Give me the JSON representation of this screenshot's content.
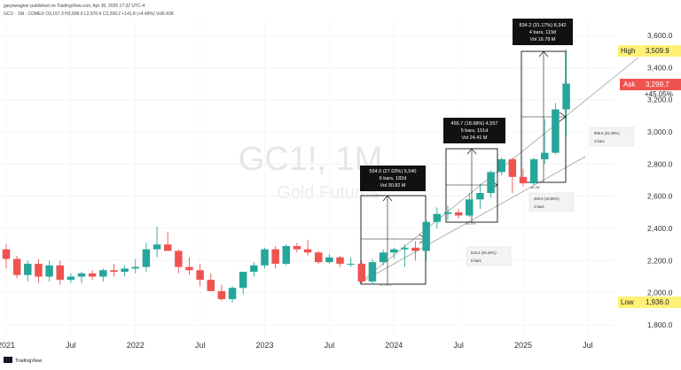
{
  "header": {
    "publisher": "garyowagner published on TradingView.com, Apr 30, 2025 17:32 UTC-4",
    "ohlc": "GC1! · 1M · COMEX  O3,157.3  H3,509.9  L2,970.4  C3,299.2  +141.8 (+4.49%)  Vol5.43K"
  },
  "watermark": {
    "symbol": "GC1!, 1M",
    "name": "Gold Futures"
  },
  "footer": {
    "logo_text": "TradingView"
  },
  "labels": {
    "high_label": "High",
    "high_value": "3,509.9",
    "ask_label": "Ask",
    "ask_value": "3,299.7",
    "ask_pct": "+45.05%",
    "low_label": "Low",
    "low_value": "1,936.0"
  },
  "measures": [
    {
      "line1": "554.0 (27.03%) 5,540",
      "line2": "6 bars, 182d",
      "line3": "Vol 30.82 M"
    },
    {
      "line1": "455.7 (18.68%) 4,557",
      "line2": "5 bars, 151d",
      "line3": "Vol 24.41 M"
    },
    {
      "line1": "834.2 (31.17%) 8,342",
      "line2": "4 bars, 119d",
      "line3": "Vol 16.78 M"
    }
  ],
  "notes": [
    {
      "line1": "543.4 (26.44%)",
      "line2": "6 bars"
    },
    {
      "line1": "450.9 (18.50%)",
      "line2": "4 bars"
    },
    {
      "line1": "856.6 (32.29%)",
      "line2": "4 bars"
    }
  ],
  "small_labels": {
    "angle": "45.36°",
    "b1": "32.33%",
    "b2": "26.4%"
  },
  "colors": {
    "up": "#26a69a",
    "down": "#ef5350",
    "highlight": "#fff176",
    "ask": "#ef5350"
  },
  "chart_data": {
    "type": "candlestick",
    "title": "GC1!, 1M",
    "subtitle": "Gold Futures",
    "ylim": [
      1700,
      3700
    ],
    "y_ticks": [
      1800,
      2000,
      2200,
      2400,
      2600,
      2800,
      3000,
      3200,
      3400,
      3600
    ],
    "y_tick_labels": [
      "1,800.0",
      "2,000.0",
      "2,200.0",
      "2,400.0",
      "2,600.0",
      "2,800.0",
      "3,000.0",
      "3,200.0",
      "3,400.0",
      "3,600.0"
    ],
    "x_labels": [
      {
        "label": "2021",
        "i": 0
      },
      {
        "label": "Jul",
        "i": 6
      },
      {
        "label": "2022",
        "i": 12
      },
      {
        "label": "Jul",
        "i": 18
      },
      {
        "label": "2023",
        "i": 24
      },
      {
        "label": "Jul",
        "i": 30
      },
      {
        "label": "2024",
        "i": 36
      },
      {
        "label": "Jul",
        "i": 42
      },
      {
        "label": "2025",
        "i": 48
      },
      {
        "label": "Jul",
        "i": 54
      }
    ],
    "candles": [
      {
        "o": 2270,
        "h": 2300,
        "l": 2150,
        "c": 2210
      },
      {
        "o": 2210,
        "h": 2230,
        "l": 2090,
        "c": 2110
      },
      {
        "o": 2110,
        "h": 2200,
        "l": 2070,
        "c": 2180
      },
      {
        "o": 2180,
        "h": 2210,
        "l": 2060,
        "c": 2100
      },
      {
        "o": 2100,
        "h": 2200,
        "l": 2070,
        "c": 2170
      },
      {
        "o": 2170,
        "h": 2200,
        "l": 2050,
        "c": 2080
      },
      {
        "o": 2080,
        "h": 2120,
        "l": 2060,
        "c": 2100
      },
      {
        "o": 2100,
        "h": 2130,
        "l": 2060,
        "c": 2120
      },
      {
        "o": 2120,
        "h": 2140,
        "l": 2080,
        "c": 2100
      },
      {
        "o": 2100,
        "h": 2150,
        "l": 2070,
        "c": 2140
      },
      {
        "o": 2140,
        "h": 2180,
        "l": 2100,
        "c": 2130
      },
      {
        "o": 2130,
        "h": 2170,
        "l": 2100,
        "c": 2150
      },
      {
        "o": 2150,
        "h": 2210,
        "l": 2120,
        "c": 2160
      },
      {
        "o": 2160,
        "h": 2310,
        "l": 2130,
        "c": 2270
      },
      {
        "o": 2270,
        "h": 2410,
        "l": 2220,
        "c": 2300
      },
      {
        "o": 2300,
        "h": 2380,
        "l": 2260,
        "c": 2260
      },
      {
        "o": 2260,
        "h": 2270,
        "l": 2120,
        "c": 2160
      },
      {
        "o": 2160,
        "h": 2220,
        "l": 2110,
        "c": 2140
      },
      {
        "o": 2140,
        "h": 2180,
        "l": 2040,
        "c": 2080
      },
      {
        "o": 2080,
        "h": 2120,
        "l": 2010,
        "c": 2010
      },
      {
        "o": 2010,
        "h": 2050,
        "l": 1950,
        "c": 1960
      },
      {
        "o": 1960,
        "h": 2040,
        "l": 1940,
        "c": 2030
      },
      {
        "o": 2030,
        "h": 2130,
        "l": 1990,
        "c": 2130
      },
      {
        "o": 2130,
        "h": 2190,
        "l": 2100,
        "c": 2170
      },
      {
        "o": 2170,
        "h": 2280,
        "l": 2150,
        "c": 2270
      },
      {
        "o": 2270,
        "h": 2290,
        "l": 2150,
        "c": 2180
      },
      {
        "o": 2180,
        "h": 2300,
        "l": 2170,
        "c": 2290
      },
      {
        "o": 2290,
        "h": 2310,
        "l": 2250,
        "c": 2270
      },
      {
        "o": 2270,
        "h": 2330,
        "l": 2230,
        "c": 2250
      },
      {
        "o": 2250,
        "h": 2260,
        "l": 2180,
        "c": 2190
      },
      {
        "o": 2190,
        "h": 2240,
        "l": 2180,
        "c": 2220
      },
      {
        "o": 2220,
        "h": 2230,
        "l": 2160,
        "c": 2180
      },
      {
        "o": 2180,
        "h": 2220,
        "l": 2160,
        "c": 2180
      },
      {
        "o": 2180,
        "h": 2200,
        "l": 2050,
        "c": 2070
      },
      {
        "o": 2070,
        "h": 2210,
        "l": 2050,
        "c": 2190
      },
      {
        "o": 2190,
        "h": 2270,
        "l": 2170,
        "c": 2250
      },
      {
        "o": 2250,
        "h": 2280,
        "l": 2210,
        "c": 2270
      },
      {
        "o": 2270,
        "h": 2300,
        "l": 2160,
        "c": 2280
      },
      {
        "o": 2280,
        "h": 2320,
        "l": 2200,
        "c": 2260
      },
      {
        "o": 2260,
        "h": 2450,
        "l": 2200,
        "c": 2440
      },
      {
        "o": 2440,
        "h": 2530,
        "l": 2400,
        "c": 2490
      },
      {
        "o": 2490,
        "h": 2540,
        "l": 2450,
        "c": 2500
      },
      {
        "o": 2500,
        "h": 2520,
        "l": 2460,
        "c": 2480
      },
      {
        "o": 2480,
        "h": 2620,
        "l": 2470,
        "c": 2580
      },
      {
        "o": 2580,
        "h": 2680,
        "l": 2520,
        "c": 2620
      },
      {
        "o": 2620,
        "h": 2760,
        "l": 2590,
        "c": 2750
      },
      {
        "o": 2750,
        "h": 2840,
        "l": 2730,
        "c": 2830
      },
      {
        "o": 2830,
        "h": 2840,
        "l": 2620,
        "c": 2720
      },
      {
        "o": 2720,
        "h": 2770,
        "l": 2660,
        "c": 2680
      },
      {
        "o": 2680,
        "h": 2840,
        "l": 2670,
        "c": 2830
      },
      {
        "o": 2830,
        "h": 3080,
        "l": 2800,
        "c": 2870
      },
      {
        "o": 2870,
        "h": 3180,
        "l": 2860,
        "c": 3140
      },
      {
        "o": 3140,
        "h": 3510,
        "l": 2970,
        "c": 3300
      }
    ]
  }
}
